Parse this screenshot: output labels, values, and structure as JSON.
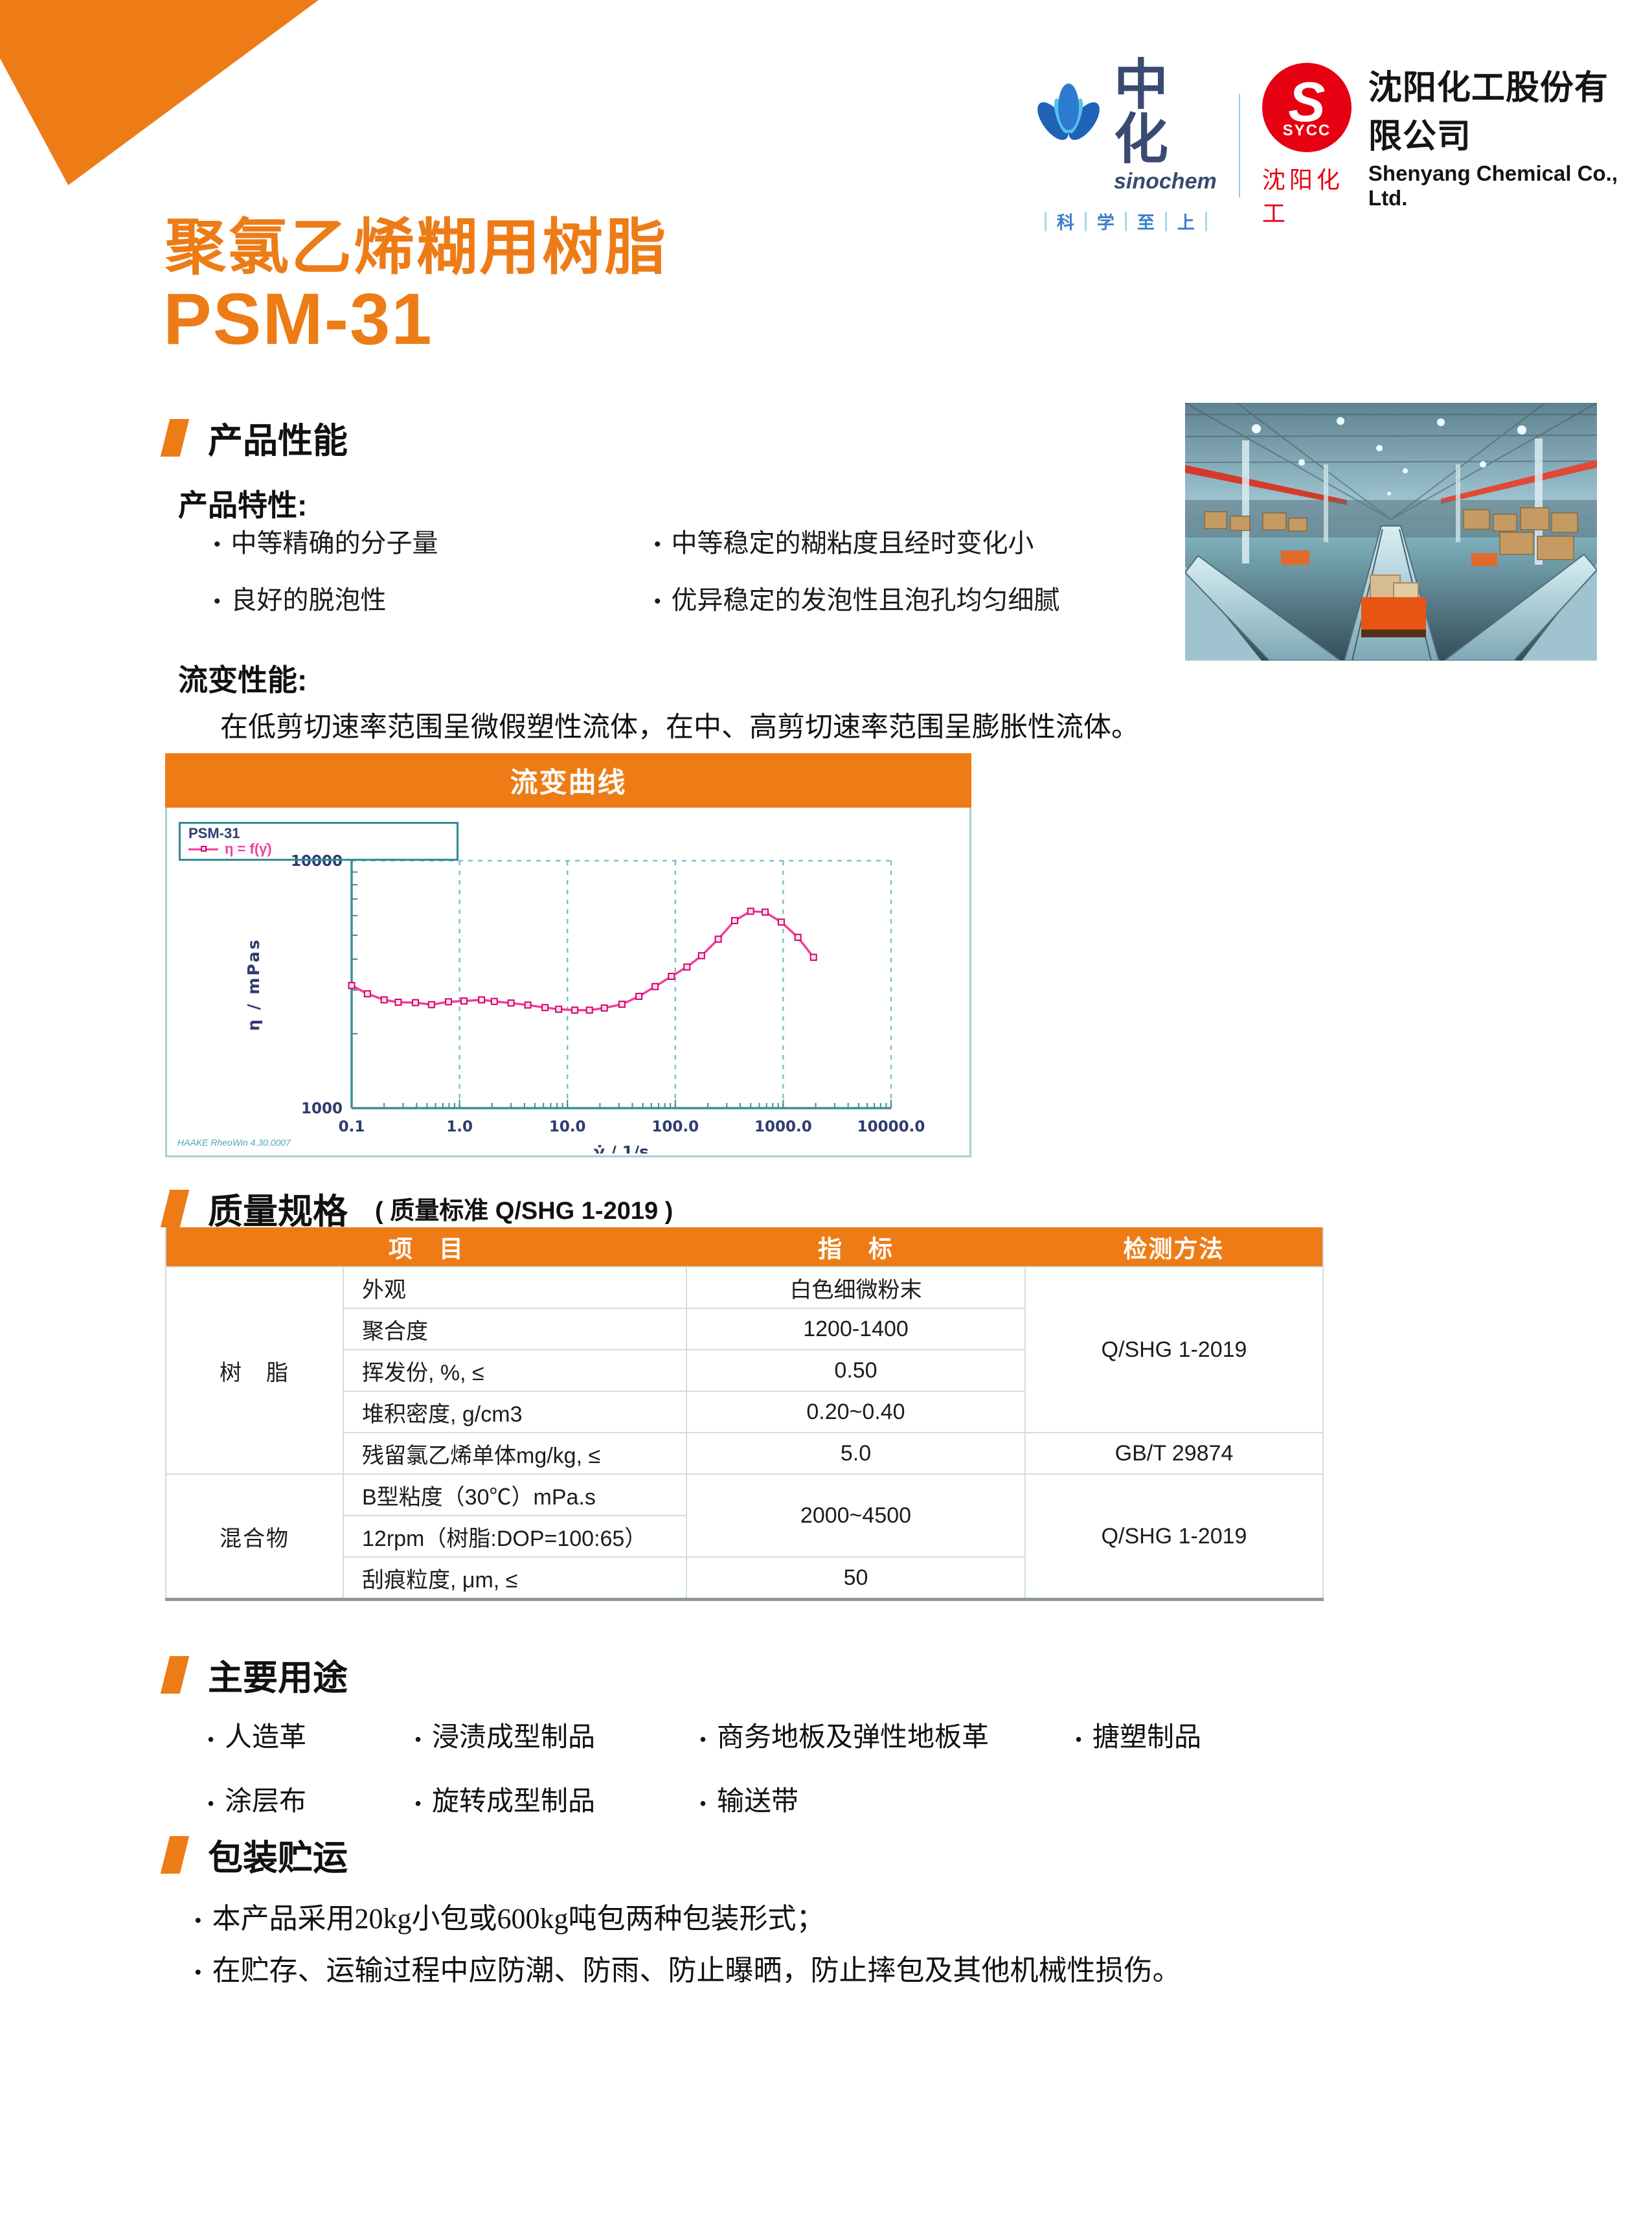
{
  "accent_color": "#ED7C17",
  "header": {
    "sinochem": {
      "zh": "中化",
      "en": "sinochem",
      "slogan": [
        "科",
        "学",
        "至",
        "上"
      ]
    },
    "sycc": {
      "s": "S",
      "abbr": "SYCC",
      "zh": "沈阳化工"
    },
    "company": {
      "zh": "沈阳化工股份有限公司",
      "en": "Shenyang Chemical Co., Ltd."
    }
  },
  "title": {
    "line1": "聚氯乙烯糊用树脂",
    "line2": "PSM-31"
  },
  "sections": {
    "performance": {
      "heading": "产品性能",
      "features_label": "产品特性:",
      "features": [
        "中等精确的分子量",
        "良好的脱泡性",
        "中等稳定的糊粘度且经时变化小",
        "优异稳定的发泡性且泡孔均匀细腻"
      ]
    },
    "rheology": {
      "label": "流变性能:",
      "paragraph": "在低剪切速率范围呈微假塑性流体，在中、高剪切速率范围呈膨胀性流体。"
    },
    "quality": {
      "heading": "质量规格",
      "heading_note": "( 质量标准 Q/SHG 1-2019 )"
    },
    "usage": {
      "heading": "主要用途",
      "items": [
        "人造革",
        "浸渍成型制品",
        "商务地板及弹性地板革",
        "搪塑制品",
        "涂层布",
        "旋转成型制品",
        "输送带"
      ]
    },
    "packaging": {
      "heading": "包装贮运",
      "items": [
        "本产品采用20kg小包或600kg吨包两种包装形式；",
        "在贮存、运输过程中应防潮、防雨、防止曝晒，防止摔包及其他机械性损伤。"
      ]
    }
  },
  "chart_data": {
    "type": "line",
    "title": "流变曲线",
    "legend": {
      "series_label": "PSM-31",
      "formula": "η = f(γ̇)"
    },
    "xlabel": "γ̇ / 1/s",
    "ylabel": "η / mPas",
    "x_scale": "log",
    "y_scale": "log",
    "xlim": [
      0.1,
      10000
    ],
    "ylim": [
      1000,
      10000
    ],
    "x_ticks": [
      "0.1",
      "1.0",
      "10.0",
      "100.0",
      "1000.0",
      "10000.0"
    ],
    "y_ticks": [
      "1000",
      "10000"
    ],
    "grid": "dashed verticals at decades + top border",
    "legend_position": "top-left",
    "watermark": "HAAKE RheoWin 4.30.0007",
    "series": [
      {
        "name": "η = f(γ̇)",
        "color": "#F23E9C",
        "points": [
          [
            0.1,
            3130
          ],
          [
            0.14,
            2900
          ],
          [
            0.2,
            2740
          ],
          [
            0.27,
            2680
          ],
          [
            0.39,
            2670
          ],
          [
            0.55,
            2620
          ],
          [
            0.79,
            2690
          ],
          [
            1.1,
            2710
          ],
          [
            1.6,
            2740
          ],
          [
            2.1,
            2700
          ],
          [
            3.0,
            2660
          ],
          [
            4.3,
            2610
          ],
          [
            6.2,
            2550
          ],
          [
            8.3,
            2510
          ],
          [
            11.7,
            2490
          ],
          [
            16,
            2490
          ],
          [
            22,
            2540
          ],
          [
            32,
            2630
          ],
          [
            46,
            2830
          ],
          [
            65,
            3100
          ],
          [
            92,
            3410
          ],
          [
            128,
            3720
          ],
          [
            175,
            4130
          ],
          [
            250,
            4820
          ],
          [
            355,
            5730
          ],
          [
            500,
            6250
          ],
          [
            680,
            6200
          ],
          [
            960,
            5650
          ],
          [
            1370,
            4900
          ],
          [
            1910,
            4070
          ]
        ]
      }
    ]
  },
  "table": {
    "headers": [
      "项　目",
      "指　标",
      "检测方法"
    ],
    "rows": [
      {
        "group": "树　脂",
        "item": "外观",
        "value": "白色细微粉末",
        "method": "Q/SHG 1-2019"
      },
      {
        "item": "聚合度",
        "value": "1200-1400"
      },
      {
        "item": "挥发份, %,  ≤",
        "value": "0.50"
      },
      {
        "item": "堆积密度, g/cm3",
        "value": "0.20~0.40"
      },
      {
        "item": "残留氯乙烯单体mg/kg,  ≤",
        "value": "5.0",
        "method": "GB/T 29874"
      },
      {
        "group": "混合物",
        "item": "B型粘度（30℃）mPa.s",
        "value": "2000~4500",
        "method": "Q/SHG 1-2019"
      },
      {
        "item": "12rpm（树脂:DOP=100:65）"
      },
      {
        "item": "刮痕粒度, μm,  ≤",
        "value": "50"
      }
    ]
  }
}
